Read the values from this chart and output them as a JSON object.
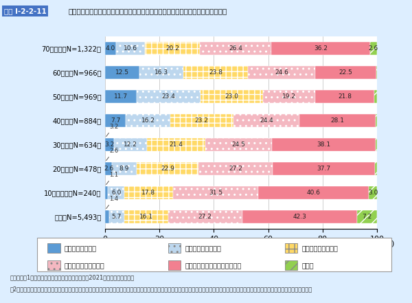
{
  "title_box": "図表 I-2-2-11",
  "subtitle": "「今しかできない参加型の体験やコンテンツにお金を使う」人の割合（年齢層別）",
  "categories": [
    "全体（N=5,493）",
    "10歳代後半（N=240）",
    "20歳代（N=478）",
    "30歳代（N=634）",
    "40歳代（N=884）",
    "50歳代（N=969）",
    "60歳代（N=966）",
    "70歳令上（N=1,322）"
  ],
  "series_keys": [
    "とても当てはまる",
    "ある程度当てはまる",
    "どちらともいえない",
    "あまり当てはまらない",
    "ほとんど・全く当てはまらない",
    "無回答"
  ],
  "bar_data": [
    [
      4.0,
      10.6,
      20.2,
      26.4,
      36.2,
      2.6
    ],
    [
      12.5,
      16.3,
      23.8,
      24.6,
      22.5,
      0.4
    ],
    [
      11.7,
      23.4,
      23.0,
      19.2,
      21.8,
      0.8
    ],
    [
      7.7,
      16.2,
      23.2,
      24.4,
      28.1,
      0.3
    ],
    [
      3.2,
      12.2,
      21.4,
      24.5,
      38.1,
      0.6
    ],
    [
      2.6,
      8.9,
      22.9,
      27.2,
      37.7,
      0.7
    ],
    [
      1.1,
      6.0,
      17.8,
      31.5,
      40.6,
      3.0
    ],
    [
      1.4,
      5.7,
      16.1,
      27.2,
      42.3,
      7.2
    ]
  ],
  "colors": [
    "#5b9bd5",
    "#bdd7ee",
    "#ffd966",
    "#f4b8c1",
    "#f28090",
    "#92d050"
  ],
  "hatches": [
    "",
    "..",
    "++",
    "..",
    "",
    "//"
  ],
  "small_labels": [
    "",
    "",
    "",
    "",
    "3.2",
    "2.6",
    "1.1",
    "1.4"
  ],
  "legend_labels": [
    "とても当てはまる",
    "ある程度当てはまる",
    "どちらともいえない",
    "あまり当てはまらない",
    "ほとんど・全く当てはまらない",
    "無回答"
  ],
  "note1": "（備考）、1．消費者庁「消費者意識基本調査」（2021年度）により作成。",
  "note2": "　2．「あなた自身の消費意識や行動について、以下の項目がどの程度当てはまると思いますか。」との問について、「今しかできない参加型の体験やコンテンツにお金を使う」を選択した回答。",
  "background_color": "#ddeeff",
  "plot_bg_color": "#ffffff",
  "xticks": [
    0,
    20,
    40,
    60,
    80,
    100
  ]
}
